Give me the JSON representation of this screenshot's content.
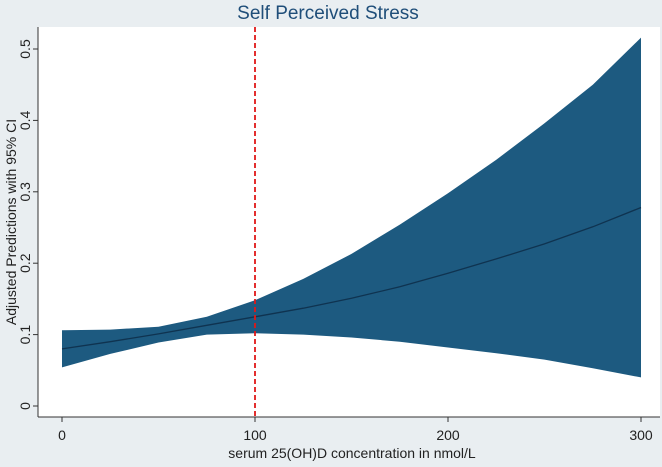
{
  "chart_data": {
    "type": "area",
    "title": "Self Perceived Stress",
    "xlabel": "serum 25(OH)D concentration in nmol/L",
    "ylabel": "Adjusted Predictions with 95% CI",
    "xlim": [
      0,
      300
    ],
    "ylim": [
      0,
      0.5
    ],
    "xticks": [
      0,
      100,
      200,
      300
    ],
    "yticks": [
      0,
      0.1,
      0.2,
      0.3,
      0.4,
      0.5
    ],
    "xtick_labels": [
      "0",
      "100",
      "200",
      "300"
    ],
    "ytick_labels": [
      "0",
      "0.1",
      "0.2",
      "0.3",
      "0.4",
      "0.5"
    ],
    "reference_line": {
      "x": 100,
      "color": "#e01818",
      "style": "dashed"
    },
    "band_color": "#1d5a80",
    "line_color": "#0f3350",
    "series": [
      {
        "name": "Adjusted prediction",
        "x": [
          0,
          25,
          50,
          75,
          100,
          125,
          150,
          175,
          200,
          225,
          250,
          275,
          300
        ],
        "estimate": [
          0.08,
          0.09,
          0.101,
          0.113,
          0.125,
          0.137,
          0.151,
          0.167,
          0.186,
          0.206,
          0.227,
          0.251,
          0.278
        ],
        "ci_low": [
          0.054,
          0.073,
          0.089,
          0.1,
          0.102,
          0.1,
          0.096,
          0.09,
          0.082,
          0.074,
          0.065,
          0.053,
          0.04
        ],
        "ci_high": [
          0.106,
          0.107,
          0.111,
          0.125,
          0.148,
          0.178,
          0.213,
          0.254,
          0.298,
          0.345,
          0.396,
          0.45,
          0.516
        ]
      }
    ]
  }
}
